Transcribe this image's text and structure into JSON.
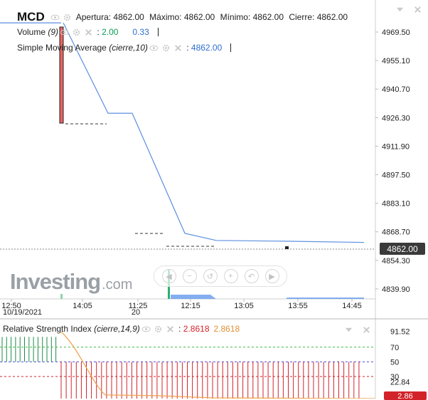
{
  "symbol": "MCD",
  "ohlc": {
    "open_label": "Apertura:",
    "open_value": "4862.00",
    "high_label": "Máximo:",
    "high_value": "4862.00",
    "low_label": "Mínimo:",
    "low_value": "4862.00",
    "close_label": "Cierre:",
    "close_value": "4862.00"
  },
  "volume": {
    "name": "Volume",
    "param": "(9)",
    "value1": "2.00",
    "value2": "0.33"
  },
  "sma": {
    "name": "Simple Moving Average",
    "param": "(cierre,10)",
    "value": "4862.00"
  },
  "price_axis": [
    "4969.50",
    "4955.10",
    "4940.70",
    "4926.30",
    "4911.90",
    "4897.50",
    "4883.10",
    "4868.70",
    "4854.30",
    "4839.90"
  ],
  "current_price": "4862.00",
  "time_axis": {
    "labels": [
      "12:50",
      "14:05",
      "11:25",
      "12:15",
      "13:05",
      "13:55",
      "14:45"
    ],
    "sub_labels": [
      "10/19/2021",
      "20"
    ]
  },
  "watermark": {
    "main": "Investing",
    "suffix": ".com"
  },
  "nav_icons": [
    "arrow-left-icon",
    "zoom-out-icon",
    "zoom-reset-icon",
    "zoom-in-icon",
    "undo-icon",
    "arrow-right-icon"
  ],
  "rsi": {
    "name": "Relative Strength Index",
    "param": "(cierre,14,9)",
    "value1": "2.8618",
    "value2": "2.8618",
    "axis": [
      "91.52",
      "70",
      "50",
      "30",
      "22.84"
    ],
    "badge": "2.86"
  },
  "colors": {
    "line": "#5b8fe0",
    "candle_red": "#e8645f",
    "candle_green": "#2dae6e",
    "rsi_red": "#d2232a",
    "rsi_green": "#1e8a4a",
    "sma_orange": "#f0a14a",
    "level_green": "#3cba3c",
    "level_red": "#d2232a",
    "level_blue": "#4a4ad8"
  },
  "chart_data": {
    "type": "line",
    "x": [
      "12:50",
      "14:05",
      "11:25",
      "12:15",
      "13:05",
      "13:55",
      "14:45"
    ],
    "series": [
      {
        "values": [
          4970.8,
          4926.0,
          4926.0,
          4866.5,
          4863.0,
          4862.6,
          4862.0
        ]
      }
    ],
    "ylim": [
      4834.0,
      4980.0
    ],
    "rsi_levels": [
      70,
      50,
      30
    ],
    "rsi_ylim": [
      0,
      95
    ]
  }
}
